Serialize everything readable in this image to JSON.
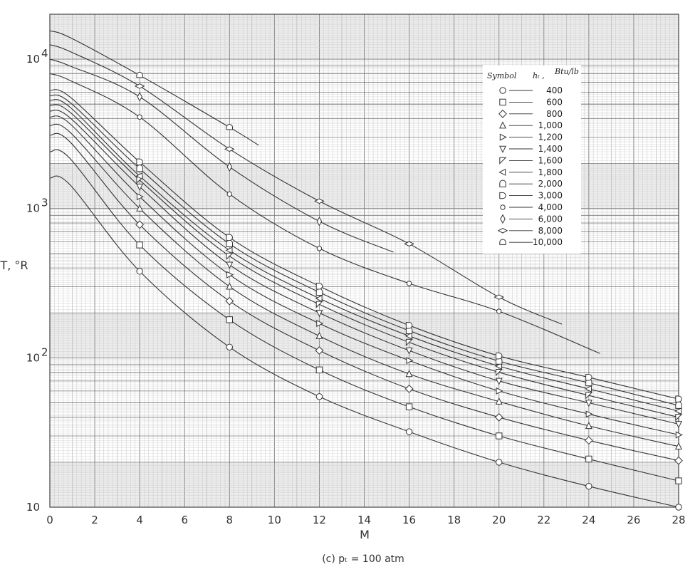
{
  "chart_data": {
    "type": "line",
    "title": "",
    "caption": "(c)  pₜ  = 100 atm",
    "xlabel": "M",
    "ylabel": "T, °R",
    "x_scale": "linear",
    "y_scale": "log",
    "xlim": [
      0,
      28
    ],
    "ylim": [
      10,
      20000
    ],
    "grid": true,
    "x_ticks": [
      "0",
      "2",
      "4",
      "6",
      "8",
      "10",
      "12",
      "14",
      "16",
      "18",
      "20",
      "22",
      "24",
      "26",
      "28"
    ],
    "y_ticks": [
      {
        "value": 10,
        "base": "10",
        "exp": ""
      },
      {
        "value": 100,
        "base": "10",
        "exp": "2"
      },
      {
        "value": 1000,
        "base": "10",
        "exp": "3"
      },
      {
        "value": 10000,
        "base": "10",
        "exp": "4"
      }
    ],
    "legend": {
      "placement": "top-right",
      "header_symbol": "Symbol",
      "header_var": "hₜ ,",
      "header_unit": "Btu/lb"
    },
    "series": [
      {
        "name": "400",
        "marker": "circle",
        "x": [
          0,
          4,
          8,
          12,
          16,
          20,
          24,
          28
        ],
        "y": [
          1600,
          380,
          118,
          55,
          32,
          20,
          13.8,
          10
        ]
      },
      {
        "name": "600",
        "marker": "square",
        "x": [
          0,
          4,
          8,
          12,
          16,
          20,
          24,
          28
        ],
        "y": [
          2400,
          570,
          180,
          83,
          47,
          30,
          21,
          15
        ]
      },
      {
        "name": "800",
        "marker": "diamond",
        "x": [
          0,
          4,
          8,
          12,
          16,
          20,
          24,
          28
        ],
        "y": [
          3100,
          780,
          240,
          112,
          62,
          40,
          28,
          20.5
        ]
      },
      {
        "name": "1,000",
        "marker": "triangle-up",
        "x": [
          0,
          4,
          8,
          12,
          16,
          20,
          24,
          28
        ],
        "y": [
          3600,
          1000,
          300,
          140,
          78,
          51,
          35,
          25.5
        ]
      },
      {
        "name": "1,200",
        "marker": "triangle-right",
        "x": [
          0,
          4,
          8,
          12,
          16,
          20,
          24,
          28
        ],
        "y": [
          4100,
          1200,
          360,
          170,
          96,
          60,
          42,
          30.5
        ]
      },
      {
        "name": "1,400",
        "marker": "triangle-down",
        "x": [
          0,
          4,
          8,
          12,
          16,
          20,
          24,
          28
        ],
        "y": [
          4500,
          1400,
          420,
          200,
          112,
          70,
          50,
          36
        ]
      },
      {
        "name": "1,600",
        "marker": "triangle-down-left",
        "x": [
          0,
          4,
          8,
          12,
          16,
          20,
          24,
          28
        ],
        "y": [
          4900,
          1550,
          480,
          228,
          127,
          80,
          56,
          40
        ]
      },
      {
        "name": "1,800",
        "marker": "triangle-left",
        "x": [
          0,
          4,
          8,
          12,
          16,
          20,
          24,
          28
        ],
        "y": [
          5300,
          1650,
          525,
          250,
          140,
          88,
          62,
          44
        ]
      },
      {
        "name": "2,000",
        "marker": "gate",
        "x": [
          0,
          4,
          8,
          12,
          16,
          20,
          24,
          28
        ],
        "y": [
          5700,
          1850,
          580,
          275,
          152,
          95,
          68,
          48
        ]
      },
      {
        "name": "3,000",
        "marker": "d-shape",
        "x": [
          0,
          4,
          8,
          12,
          16,
          20,
          24,
          28
        ],
        "y": [
          6200,
          2050,
          640,
          302,
          165,
          103,
          74,
          53
        ]
      },
      {
        "name": "4,000",
        "marker": "small-circle",
        "x": [
          0,
          4,
          8,
          12,
          16,
          20,
          24.5
        ],
        "y": [
          8000,
          4100,
          1250,
          540,
          315,
          205,
          107
        ]
      },
      {
        "name": "6,000",
        "marker": "thin-diamond",
        "x": [
          0,
          4,
          8,
          12,
          15.3
        ],
        "y": [
          10000,
          5600,
          1900,
          820,
          510
        ]
      },
      {
        "name": "8,000",
        "marker": "wide-diamond",
        "x": [
          0,
          4,
          8,
          12,
          16,
          20,
          22.8
        ],
        "y": [
          12500,
          6600,
          2500,
          1120,
          580,
          255,
          168
        ]
      },
      {
        "name": "10,000",
        "marker": "arch",
        "x": [
          0,
          4,
          8,
          9.3
        ],
        "y": [
          15500,
          7800,
          3500,
          2650
        ]
      }
    ]
  }
}
